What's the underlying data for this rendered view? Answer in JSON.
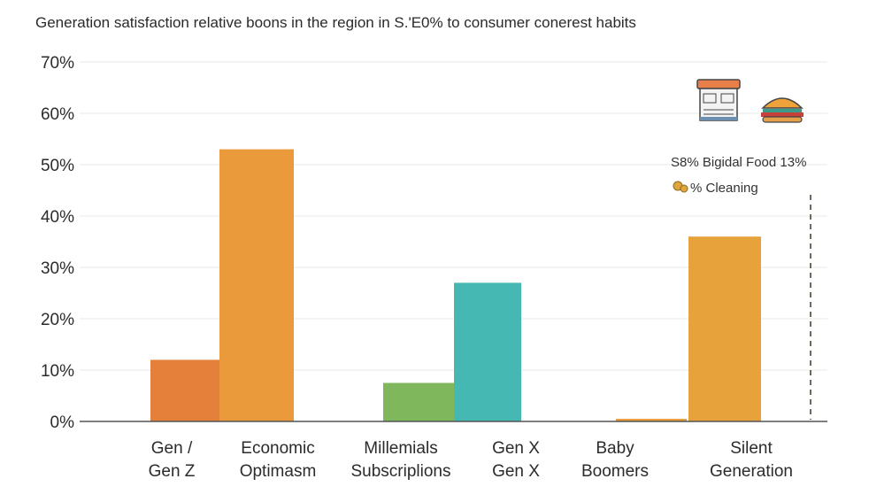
{
  "title": "Generation satisfaction relative boons in the region in S.'E0% to consumer conerest habits",
  "chart_data": {
    "type": "bar",
    "ylim": [
      0,
      70
    ],
    "y_ticks": [
      0,
      10,
      20,
      30,
      40,
      50,
      60,
      70
    ],
    "y_tick_suffix": "%",
    "grid": true,
    "bars": [
      {
        "label": "Gen / Gen Z",
        "value": 12,
        "color": "#e5803a"
      },
      {
        "label": "Economic Optimasm",
        "value": 53,
        "color": "#ea9a3a"
      },
      {
        "label": "Millemials Subscriplions",
        "value": 7.5,
        "color": "#7fb75c"
      },
      {
        "label": "Gen X Gen X",
        "value": 27,
        "color": "#45b8b4"
      },
      {
        "label": "Baby Boomers",
        "value": 0.5,
        "color": "#e79a3a"
      },
      {
        "label": "Silent Generation",
        "value": 36,
        "color": "#e8a23c"
      }
    ],
    "category_labels": [
      [
        "Gen /",
        "Gen Z"
      ],
      [
        "Economic",
        "Optimasm"
      ],
      [
        "Millemials",
        "Subscriplions"
      ],
      [
        "Gen X",
        "Gen X"
      ],
      [
        "Baby",
        "Boomers"
      ],
      [
        "Silent",
        "Generation"
      ]
    ],
    "annotations": [
      "S8%  Bigidal Food  13%",
      "% Cleaning"
    ],
    "icons": [
      "food-jar-icon",
      "burger-icon",
      "coin-icon"
    ]
  }
}
